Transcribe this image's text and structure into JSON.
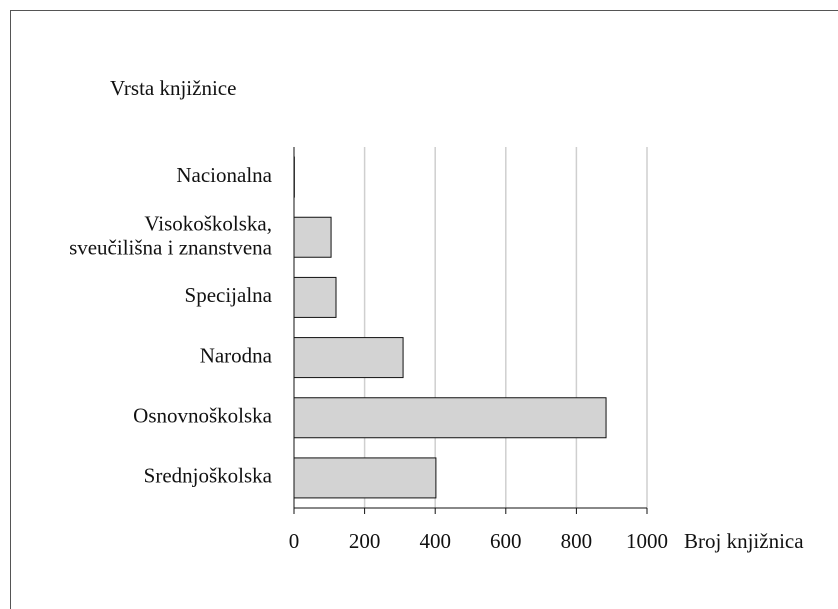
{
  "chart_data": {
    "type": "barh",
    "ylabel": "Vrsta knjižnice",
    "xlabel": "Broj knjižnica",
    "categories": [
      "Nacionalna",
      "Visokoškolska,\nsveučilišna i znanstvena",
      "Specijalna",
      "Narodna",
      "Osnovnoškolska",
      "Srednjoškolska"
    ],
    "values": [
      1,
      105,
      119,
      309,
      884,
      402
    ],
    "color": "#d3d3d3",
    "xlim": [
      0,
      1000
    ],
    "xticks": [
      0,
      200,
      400,
      600,
      800,
      1000
    ],
    "grid": true
  }
}
